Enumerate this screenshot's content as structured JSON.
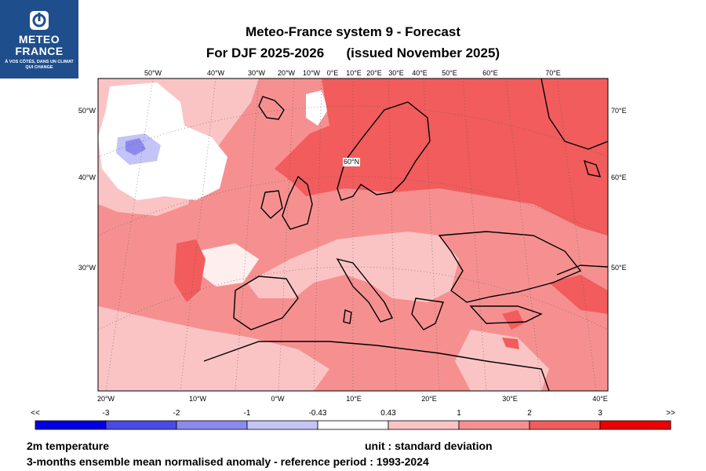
{
  "logo": {
    "line1": "METEO",
    "line2": "FRANCE",
    "tagline": "À VOS CÔTÉS, DANS UN CLIMAT QUI CHANGE",
    "color": "#1f4e8c"
  },
  "title": {
    "line1": "Meteo-France system 9  -  Forecast",
    "line2": "For DJF 2025-2026      (issued November 2025)"
  },
  "map": {
    "variable": "2m temperature",
    "unit_label": "unit : standard deviation",
    "description": "3-months ensemble mean normalised anomaly - reference period : 1993-2024",
    "top_lon_labels": [
      "50°W",
      "40°W",
      "30°W",
      "20°W",
      "10°W",
      "0°E",
      "10°E",
      "20°E",
      "30°E",
      "40°E",
      "50°E",
      "60°E",
      "70°E"
    ],
    "bottom_lon_labels": [
      "20°W",
      "10°W",
      "0°W",
      "10°E",
      "20°E",
      "30°E",
      "40°E"
    ],
    "left_lat_labels": [
      "50°W",
      "40°W",
      "30°W"
    ],
    "right_lat_labels": [
      "70°E",
      "60°E",
      "50°E"
    ],
    "inner_label": "60°N"
  },
  "colorbar": {
    "labels": [
      "<<",
      "-3",
      "-2",
      "-1",
      "-0.43",
      "0.43",
      "1",
      "2",
      "3",
      ">>"
    ],
    "colors": [
      "#0000e0",
      "#4a4ae8",
      "#8a8aee",
      "#c4c4f6",
      "#ffffff",
      "#fbc4c4",
      "#f69090",
      "#f25c5c",
      "#ee0000"
    ]
  }
}
